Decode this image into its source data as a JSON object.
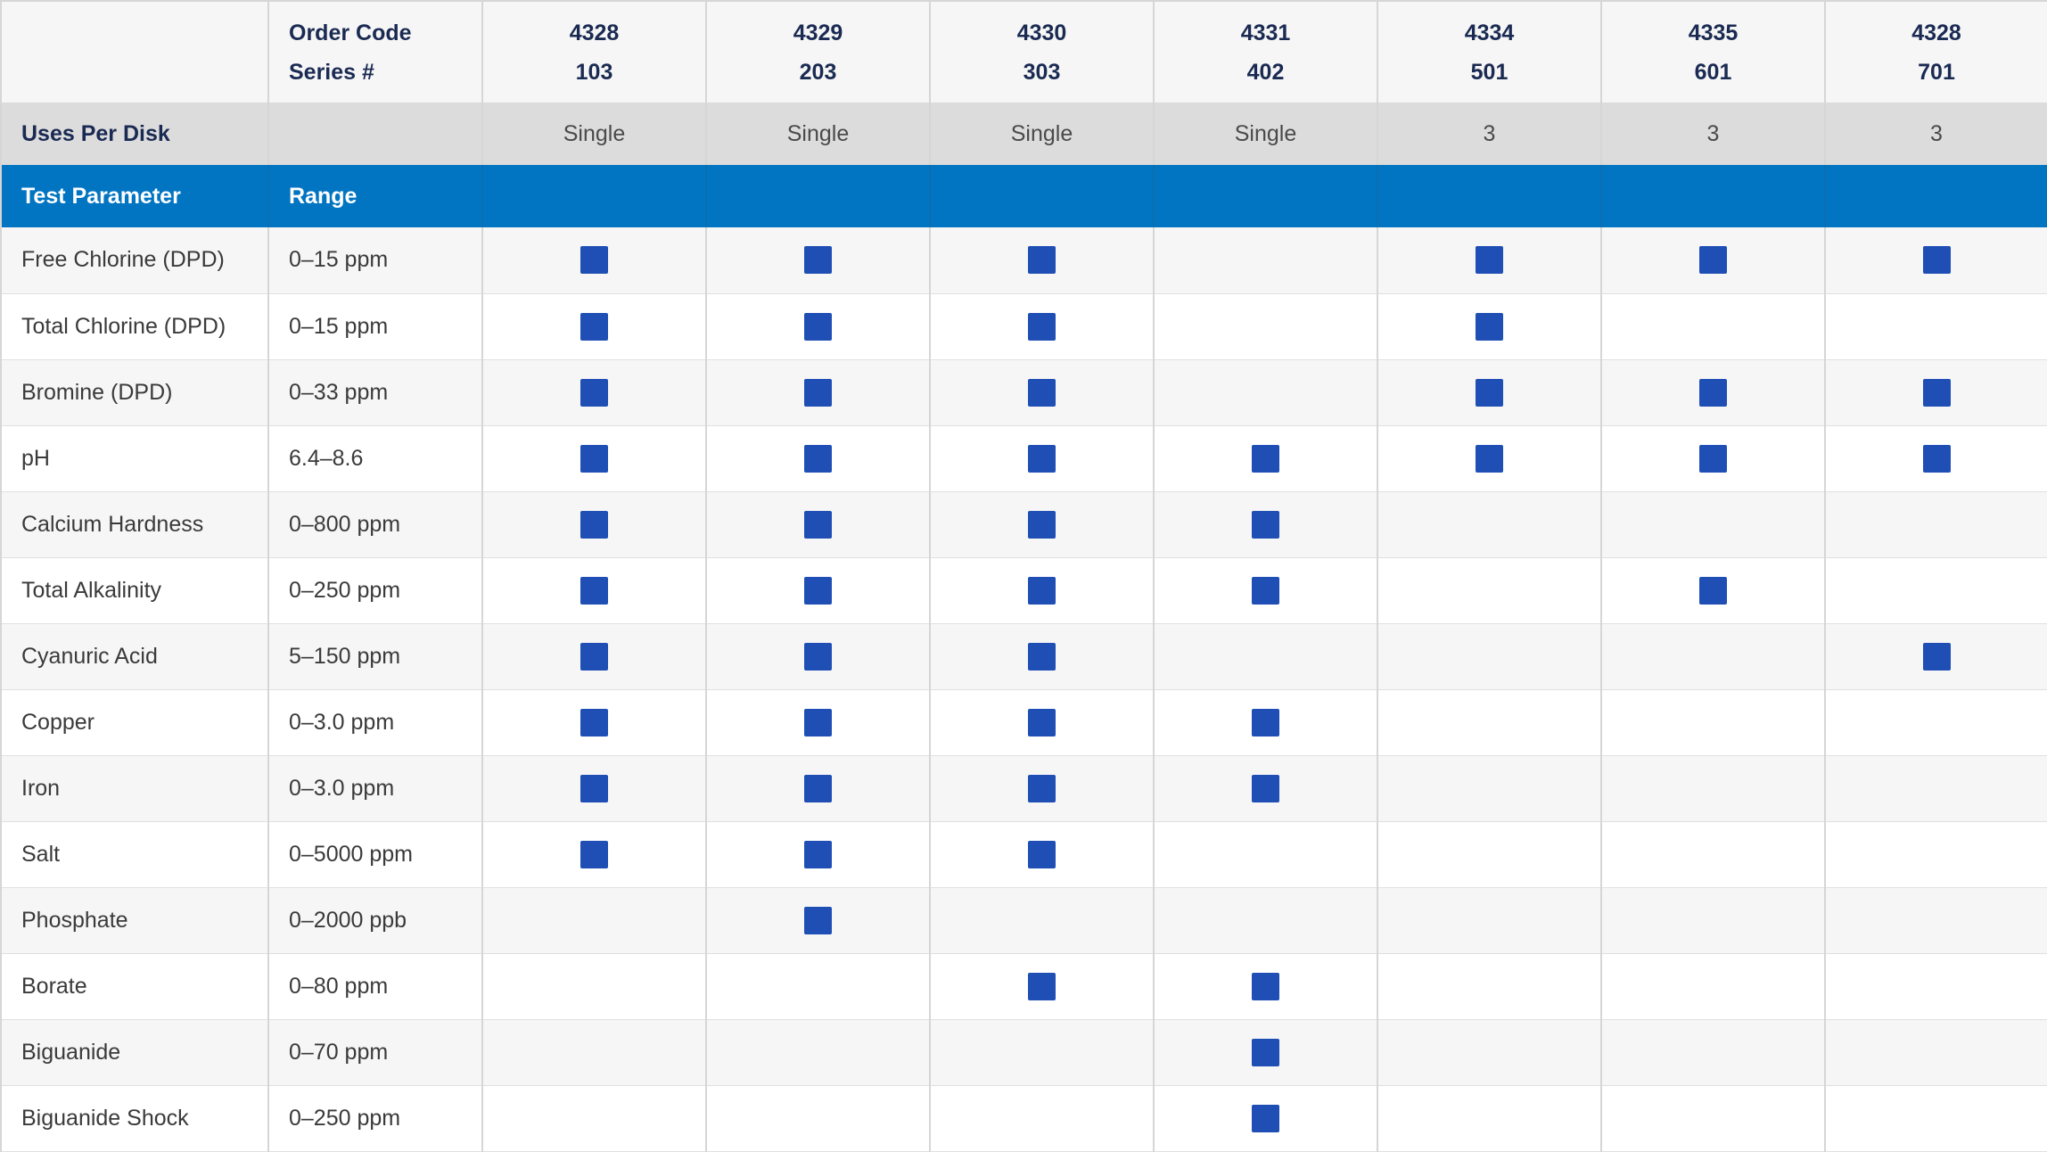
{
  "header": {
    "label_line1": "Order Code",
    "label_line2": "Series #",
    "columns": [
      {
        "order_code": "4328",
        "series": "103"
      },
      {
        "order_code": "4329",
        "series": "203"
      },
      {
        "order_code": "4330",
        "series": "303"
      },
      {
        "order_code": "4331",
        "series": "402"
      },
      {
        "order_code": "4334",
        "series": "501"
      },
      {
        "order_code": "4335",
        "series": "601"
      },
      {
        "order_code": "4328",
        "series": "701"
      }
    ]
  },
  "uses": {
    "label": "Uses Per Disk",
    "values": [
      "Single",
      "Single",
      "Single",
      "Single",
      "3",
      "3",
      "3"
    ]
  },
  "section": {
    "param_label": "Test Parameter",
    "range_label": "Range"
  },
  "colors": {
    "mark": "#1f4fb4",
    "section_bg": "#0275c2"
  },
  "rows": [
    {
      "param": "Free Chlorine (DPD)",
      "range": "0–15 ppm",
      "marks": [
        true,
        true,
        true,
        false,
        true,
        true,
        true
      ]
    },
    {
      "param": "Total Chlorine (DPD)",
      "range": "0–15 ppm",
      "marks": [
        true,
        true,
        true,
        false,
        true,
        false,
        false
      ]
    },
    {
      "param": "Bromine (DPD)",
      "range": "0–33 ppm",
      "marks": [
        true,
        true,
        true,
        false,
        true,
        true,
        true
      ]
    },
    {
      "param": "pH",
      "range": "6.4–8.6",
      "marks": [
        true,
        true,
        true,
        true,
        true,
        true,
        true
      ]
    },
    {
      "param": "Calcium Hardness",
      "range": "0–800 ppm",
      "marks": [
        true,
        true,
        true,
        true,
        false,
        false,
        false
      ]
    },
    {
      "param": "Total Alkalinity",
      "range": "0–250 ppm",
      "marks": [
        true,
        true,
        true,
        true,
        false,
        true,
        false
      ]
    },
    {
      "param": "Cyanuric Acid",
      "range": "5–150 ppm",
      "marks": [
        true,
        true,
        true,
        false,
        false,
        false,
        true
      ]
    },
    {
      "param": "Copper",
      "range": "0–3.0 ppm",
      "marks": [
        true,
        true,
        true,
        true,
        false,
        false,
        false
      ]
    },
    {
      "param": "Iron",
      "range": "0–3.0 ppm",
      "marks": [
        true,
        true,
        true,
        true,
        false,
        false,
        false
      ]
    },
    {
      "param": "Salt",
      "range": "0–5000 ppm",
      "marks": [
        true,
        true,
        true,
        false,
        false,
        false,
        false
      ]
    },
    {
      "param": "Phosphate",
      "range": "0–2000 ppb",
      "marks": [
        false,
        true,
        false,
        false,
        false,
        false,
        false
      ]
    },
    {
      "param": "Borate",
      "range": "0–80 ppm",
      "marks": [
        false,
        false,
        true,
        true,
        false,
        false,
        false
      ]
    },
    {
      "param": "Biguanide",
      "range": "0–70 ppm",
      "marks": [
        false,
        false,
        false,
        true,
        false,
        false,
        false
      ]
    },
    {
      "param": "Biguanide Shock",
      "range": "0–250 ppm",
      "marks": [
        false,
        false,
        false,
        true,
        false,
        false,
        false
      ]
    }
  ]
}
